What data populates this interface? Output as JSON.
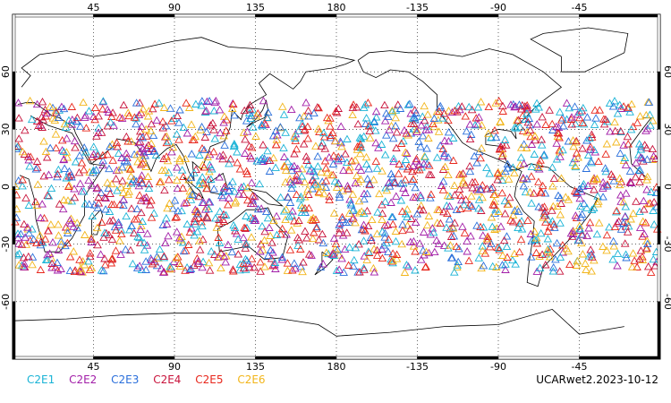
{
  "title": "",
  "lon_ticks_top": [
    "45",
    "90",
    "135",
    "180",
    "-135",
    "-90",
    "-45"
  ],
  "lon_ticks_bottom": [
    "45",
    "90",
    "135",
    "180",
    "-135",
    "-90",
    "-45"
  ],
  "lat_ticks": [
    "60",
    "30",
    "0",
    "-30",
    "-60"
  ],
  "legend": [
    {
      "label": "C2E1",
      "color": "#19b3d6"
    },
    {
      "label": "C2E2",
      "color": "#a21ea8"
    },
    {
      "label": "C2E3",
      "color": "#2a6fdb"
    },
    {
      "label": "C2E4",
      "color": "#c8143c"
    },
    {
      "label": "C2E5",
      "color": "#e8271c"
    },
    {
      "label": "C2E6",
      "color": "#f2b51a"
    }
  ],
  "footer_label": "UCARwet2.2023-10-12",
  "map": {
    "projection": "cylindrical",
    "center_lon": 180,
    "lat_range": [
      -90,
      90
    ],
    "occultation_lat_band": [
      -45,
      45
    ],
    "grid": "dotted",
    "marker": "open-triangle"
  }
}
